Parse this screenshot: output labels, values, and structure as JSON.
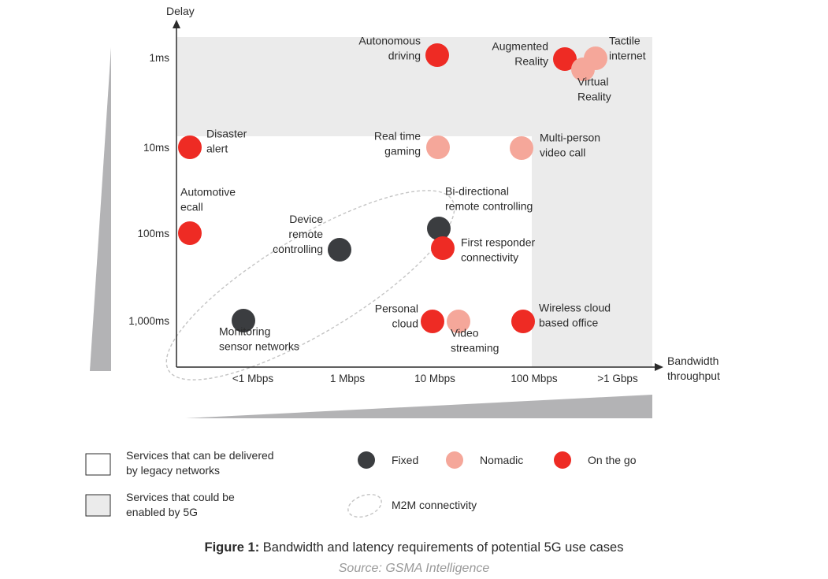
{
  "chart_data": {
    "type": "scatter",
    "x_axis": {
      "label_lines": [
        "Bandwidth",
        "throughput"
      ],
      "categories": [
        "<1 Mbps",
        "1 Mbps",
        "10 Mbps",
        "100 Mbps",
        ">1 Gbps"
      ]
    },
    "y_axis": {
      "label": "Delay",
      "categories": [
        "1ms",
        "10ms",
        "100ms",
        "1,000ms"
      ]
    },
    "regions": {
      "legacy": "Services that can be delivered by legacy networks",
      "enabled_by_5g": "Services that could be enabled by 5G",
      "m2m": "M2M connectivity"
    },
    "categories_legend": [
      {
        "key": "fixed",
        "label": "Fixed",
        "color": "#3b3d40"
      },
      {
        "key": "nomadic",
        "label": "Nomadic",
        "color": "#f5a79a"
      },
      {
        "key": "onthego",
        "label": "On the go",
        "color": "#ee2b24"
      }
    ],
    "points": [
      {
        "name": "Autonomous driving",
        "label_lines": [
          "Autonomous",
          "driving"
        ],
        "x": "10 Mbps",
        "y": "1ms",
        "category": "onthego"
      },
      {
        "name": "Augmented Reality",
        "label_lines": [
          "Augmented",
          "Reality"
        ],
        "x": "100 Mbps",
        "y": "1ms",
        "category": "onthego"
      },
      {
        "name": "Tactile internet",
        "label_lines": [
          "Tactile",
          "internet"
        ],
        "x": ">1 Gbps",
        "y": "1ms",
        "category": "nomadic"
      },
      {
        "name": "Virtual Reality",
        "label_lines": [
          "Virtual",
          "Reality"
        ],
        "x": ">1 Gbps",
        "y": "1ms",
        "category": "nomadic"
      },
      {
        "name": "Disaster alert",
        "label_lines": [
          "Disaster",
          "alert"
        ],
        "x": "<1 Mbps",
        "y": "10ms",
        "category": "onthego"
      },
      {
        "name": "Real time gaming",
        "label_lines": [
          "Real time",
          "gaming"
        ],
        "x": "10 Mbps",
        "y": "10ms",
        "category": "nomadic"
      },
      {
        "name": "Multi-person video call",
        "label_lines": [
          "Multi-person",
          "video call"
        ],
        "x": "100 Mbps",
        "y": "10ms",
        "category": "nomadic"
      },
      {
        "name": "Automotive ecall",
        "label_lines": [
          "Automotive",
          "ecall"
        ],
        "x": "<1 Mbps",
        "y": "100ms",
        "category": "onthego"
      },
      {
        "name": "Device remote controlling",
        "label_lines": [
          "Device",
          "remote",
          "controlling"
        ],
        "x": "1 Mbps",
        "y": "100ms",
        "category": "fixed"
      },
      {
        "name": "Bi-directional remote controlling",
        "label_lines": [
          "Bi-directional",
          "remote controlling"
        ],
        "x": "10 Mbps",
        "y": "100ms",
        "category": "fixed"
      },
      {
        "name": "First responder connectivity",
        "label_lines": [
          "First responder",
          "connectivity"
        ],
        "x": "10 Mbps",
        "y": "100ms",
        "category": "onthego"
      },
      {
        "name": "Monitoring sensor networks",
        "label_lines": [
          "Monitoring",
          "sensor networks"
        ],
        "x": "<1 Mbps",
        "y": "1,000ms",
        "category": "fixed"
      },
      {
        "name": "Personal cloud",
        "label_lines": [
          "Personal",
          "cloud"
        ],
        "x": "10 Mbps",
        "y": "1,000ms",
        "category": "onthego"
      },
      {
        "name": "Video streaming",
        "label_lines": [
          "Video",
          "streaming"
        ],
        "x": "10 Mbps",
        "y": "1,000ms",
        "category": "nomadic"
      },
      {
        "name": "Wireless cloud based office",
        "label_lines": [
          "Wireless cloud",
          "based office"
        ],
        "x": "100 Mbps",
        "y": "1,000ms",
        "category": "onthego"
      }
    ],
    "legend": {
      "legacy_lines": [
        "Services that can be delivered",
        "by legacy networks"
      ],
      "enabled_lines": [
        "Services that could be",
        "enabled by 5G"
      ],
      "m2m_label": "M2M connectivity"
    },
    "caption": {
      "prefix": "Figure 1:",
      "text": " Bandwidth and latency requirements of potential 5G use cases",
      "source": "Source: GSMA Intelligence"
    }
  }
}
